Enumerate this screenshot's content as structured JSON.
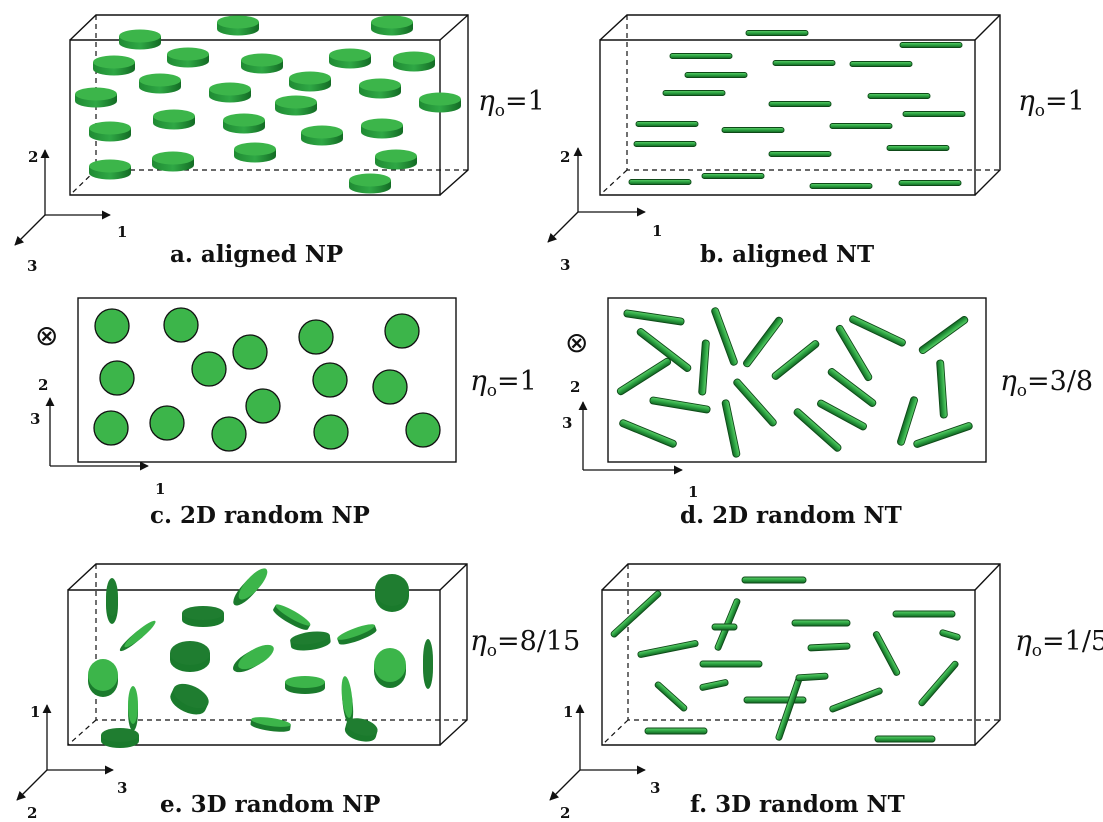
{
  "panels": [
    {
      "id": "a",
      "caption": "a. aligned NP",
      "eta_value": "=1",
      "axes": [
        "2",
        "1",
        "3"
      ]
    },
    {
      "id": "b",
      "caption": "b. aligned NT",
      "eta_value": "=1",
      "axes": [
        "2",
        "1",
        "3"
      ]
    },
    {
      "id": "c",
      "caption": "c. 2D random NP",
      "eta_value": "=1",
      "axes": [
        "2",
        "3",
        "1"
      ],
      "out_of_plane_symbol": "⊗"
    },
    {
      "id": "d",
      "caption": "d. 2D random NT",
      "eta_value": "=3/8",
      "axes": [
        "2",
        "3",
        "1"
      ],
      "out_of_plane_symbol": "⊗"
    },
    {
      "id": "e",
      "caption": "e. 3D random NP",
      "eta_value": "=8/15",
      "axes": [
        "1",
        "3",
        "2"
      ]
    },
    {
      "id": "f",
      "caption": "f. 3D random NT",
      "eta_value": "=1/5",
      "axes": [
        "1",
        "3",
        "2"
      ]
    }
  ],
  "eta_symbol": "η",
  "eta_subscript": "o",
  "colors": {
    "particle_face": "#3cb54a",
    "particle_dark": "#1a7a2c",
    "particle_edge": "#0e4a18",
    "line": "#111111"
  },
  "particle_types": {
    "np": "nanoplatelet",
    "nt": "nanotube"
  }
}
